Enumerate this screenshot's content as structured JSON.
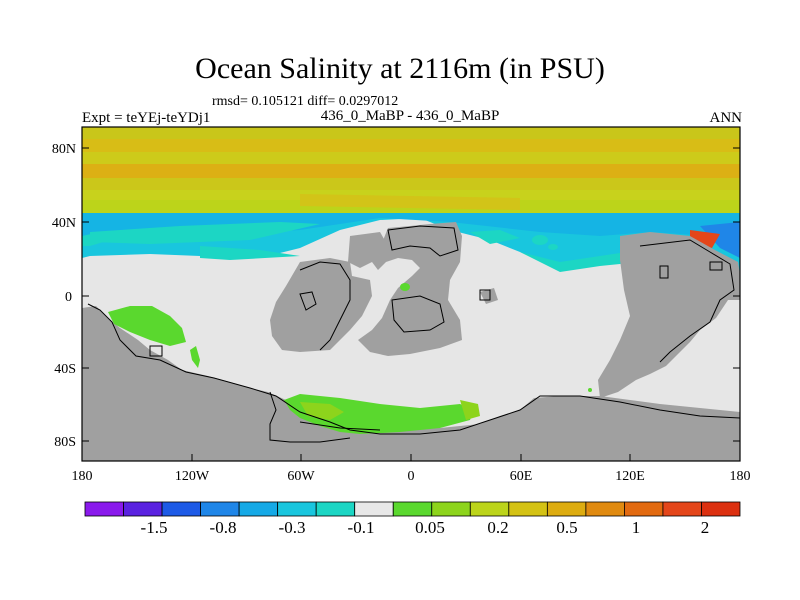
{
  "figure": {
    "title": "Ocean Salinity at 2116m (in PSU)",
    "stats": "rmsd= 0.105121 diff= 0.0297012",
    "left_label": "Expt = teYEj-teYDj1",
    "center_label": "436_0_MaBP - 436_0_MaBP",
    "right_label": "ANN"
  },
  "axes": {
    "lat_labels": [
      "80N",
      "40N",
      "0",
      "40S",
      "80S"
    ],
    "lon_labels": [
      "180",
      "120W",
      "60W",
      "0",
      "60E",
      "120E",
      "180"
    ]
  },
  "colors": {
    "land": "#a0a0a0",
    "near_zero": "#e6e6e6",
    "frame": "#000000"
  },
  "colorbar": {
    "colors": [
      "#8a1aec",
      "#5a22e0",
      "#1d5ae6",
      "#1f86e8",
      "#15a9e6",
      "#19c6de",
      "#1cd6c4",
      "#e8e8e8",
      "#5ad82e",
      "#8dd41c",
      "#bcd41a",
      "#d4c214",
      "#ddac10",
      "#e08a10",
      "#e26a10",
      "#e4461a",
      "#dc3010"
    ],
    "labels": [
      "-1.5",
      "-0.8",
      "-0.3",
      "-0.1",
      "0.05",
      "0.2",
      "0.5",
      "1",
      "2"
    ]
  }
}
